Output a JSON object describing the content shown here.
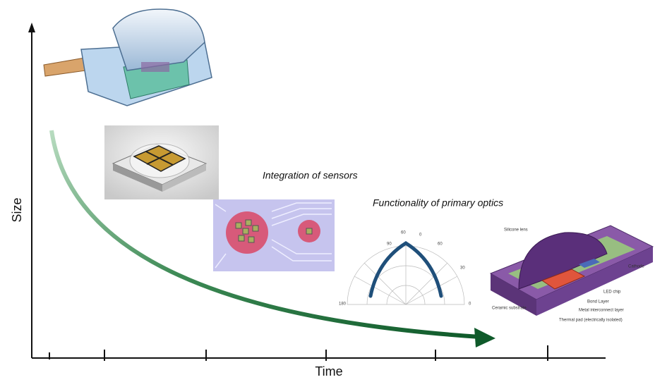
{
  "axes": {
    "y_label": "Size",
    "x_label": "Time"
  },
  "annotations": [
    "Integration of sensors",
    "Functionality of primary optics"
  ],
  "polar_plot": {
    "labels": [
      "90",
      "60",
      "0",
      "60",
      "30",
      "180",
      "0"
    ]
  },
  "led_diagram": {
    "labels": [
      "Silicone lens",
      "Cathode",
      "LED chip",
      "Bond Layer",
      "Metal interconnect layer",
      "Thermal pad (electrically isolated)",
      "Ceramic substrate"
    ]
  }
}
